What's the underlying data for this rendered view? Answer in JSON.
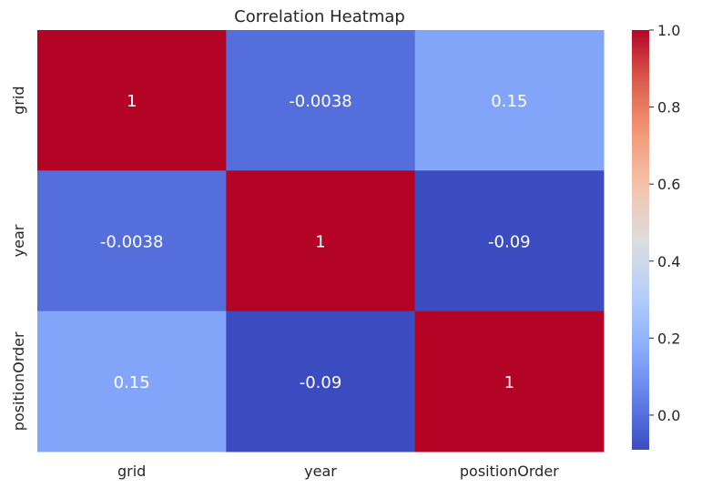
{
  "chart_data": {
    "type": "heatmap",
    "title": "Correlation Heatmap",
    "x_labels": [
      "grid",
      "year",
      "positionOrder"
    ],
    "y_labels": [
      "grid",
      "year",
      "positionOrder"
    ],
    "matrix": [
      [
        1,
        -0.0038,
        0.15
      ],
      [
        -0.0038,
        1,
        -0.09
      ],
      [
        0.15,
        -0.09,
        1
      ]
    ],
    "annotations": [
      [
        "1",
        "-0.0038",
        "0.15"
      ],
      [
        "-0.0038",
        "1",
        "-0.09"
      ],
      [
        "0.15",
        "-0.09",
        "1"
      ]
    ],
    "colormap": "coolwarm",
    "vmin": -0.09,
    "vmax": 1.0,
    "colorbar_ticks": [
      "0.0",
      "0.2",
      "0.4",
      "0.6",
      "0.8",
      "1.0"
    ],
    "colorbar_tick_values": [
      0.0,
      0.2,
      0.4,
      0.6,
      0.8,
      1.0
    ],
    "annotation_text_color": "#ffffff"
  }
}
